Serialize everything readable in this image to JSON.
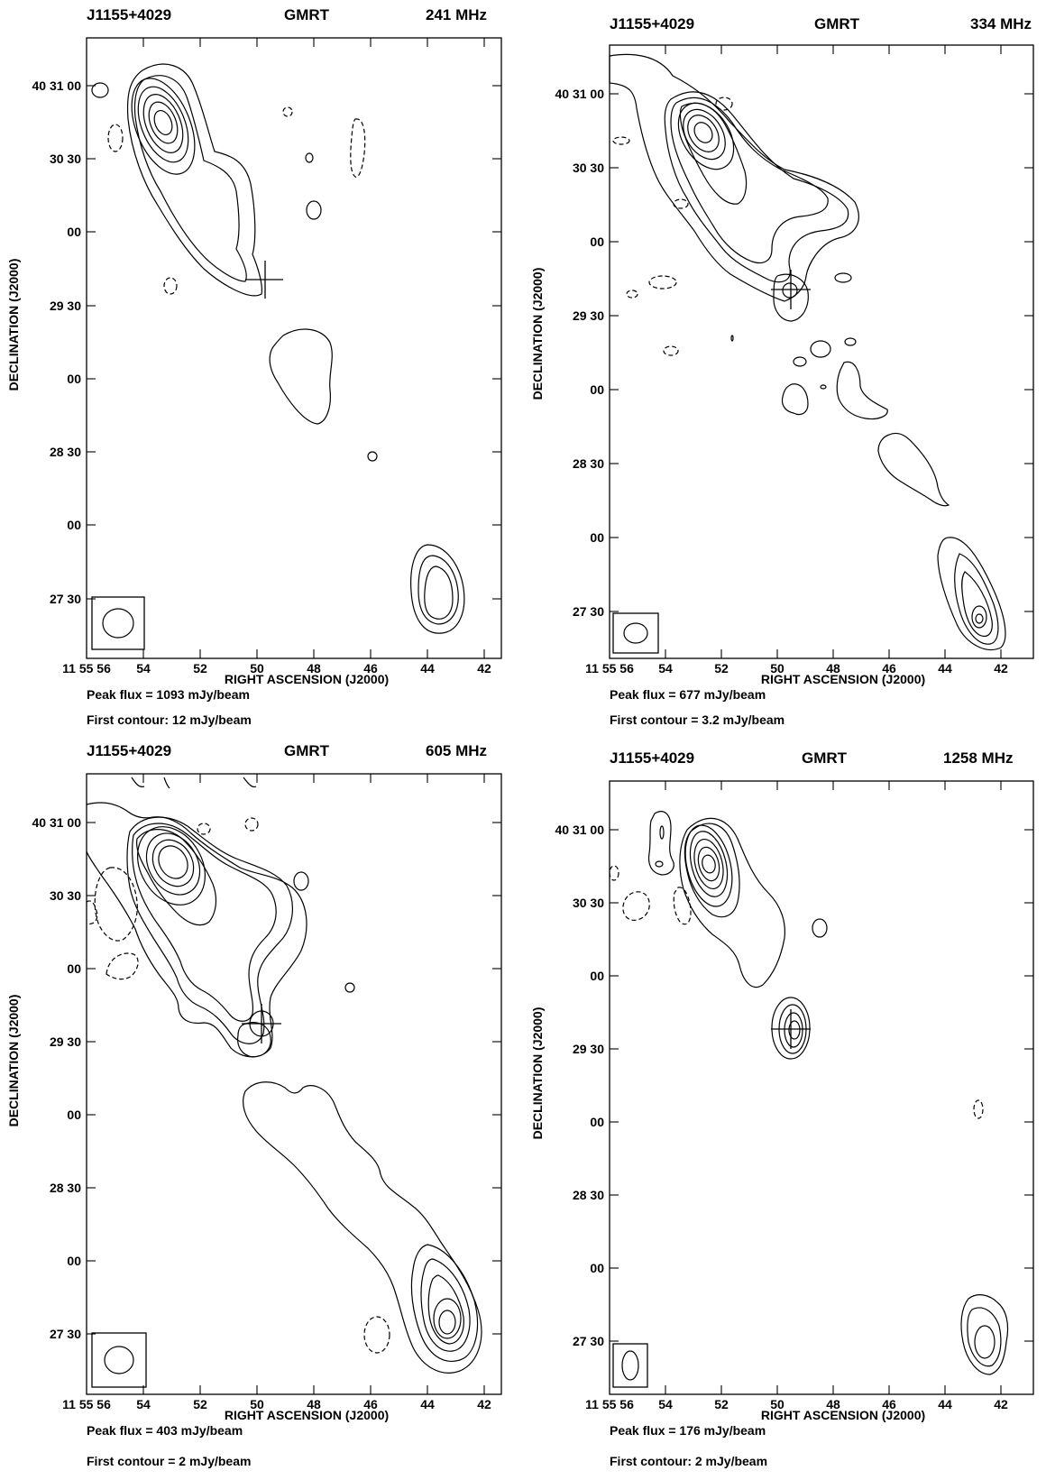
{
  "panels": [
    {
      "source": "J1155+4029",
      "telescope": "GMRT",
      "frequency": "241 MHz",
      "x_ticks": [
        "11 55 56",
        "54",
        "52",
        "50",
        "48",
        "46",
        "44",
        "42"
      ],
      "y_ticks": [
        "40 31 00",
        "30 30",
        "00",
        "29 30",
        "00",
        "28 30",
        "00",
        "27 30"
      ],
      "xlabel": "RIGHT ASCENSION (J2000)",
      "ylabel": "DECLINATION (J2000)",
      "peak_flux": "Peak flux =  1093 mJy/beam",
      "first_contour": "First contour: 12 mJy/beam"
    },
    {
      "source": "J1155+4029",
      "telescope": "GMRT",
      "frequency": "334 MHz",
      "x_ticks": [
        "11 55 56",
        "54",
        "52",
        "50",
        "48",
        "46",
        "44",
        "42"
      ],
      "y_ticks": [
        "40 31 00",
        "30 30",
        "00",
        "29 30",
        "00",
        "28 30",
        "00",
        "27 30"
      ],
      "xlabel": "RIGHT ASCENSION (J2000)",
      "ylabel": "DECLINATION (J2000)",
      "peak_flux": "Peak flux = 677 mJy/beam",
      "first_contour": "First contour = 3.2 mJy/beam"
    },
    {
      "source": "J1155+4029",
      "telescope": "GMRT",
      "frequency": "605 MHz",
      "x_ticks": [
        "11 55 56",
        "54",
        "52",
        "50",
        "48",
        "46",
        "44",
        "42"
      ],
      "y_ticks": [
        "40 31 00",
        "30 30",
        "00",
        "29 30",
        "00",
        "28 30",
        "00",
        "27 30"
      ],
      "xlabel": "RIGHT ASCENSION (J2000)",
      "ylabel": "DECLINATION (J2000)",
      "peak_flux": "Peak flux =  403 mJy/beam",
      "first_contour": "First contour = 2 mJy/beam"
    },
    {
      "source": "J1155+4029",
      "telescope": "GMRT",
      "frequency": "1258 MHz",
      "x_ticks": [
        "11 55 56",
        "54",
        "52",
        "50",
        "48",
        "46",
        "44",
        "42"
      ],
      "y_ticks": [
        "40 31 00",
        "30 30",
        "00",
        "29 30",
        "00",
        "28 30",
        "00",
        "27 30"
      ],
      "xlabel": "RIGHT ASCENSION (J2000)",
      "ylabel": "DECLINATION (J2000)",
      "peak_flux": "Peak flux =  176 mJy/beam",
      "first_contour": "First contour: 2 mJy/beam"
    }
  ]
}
